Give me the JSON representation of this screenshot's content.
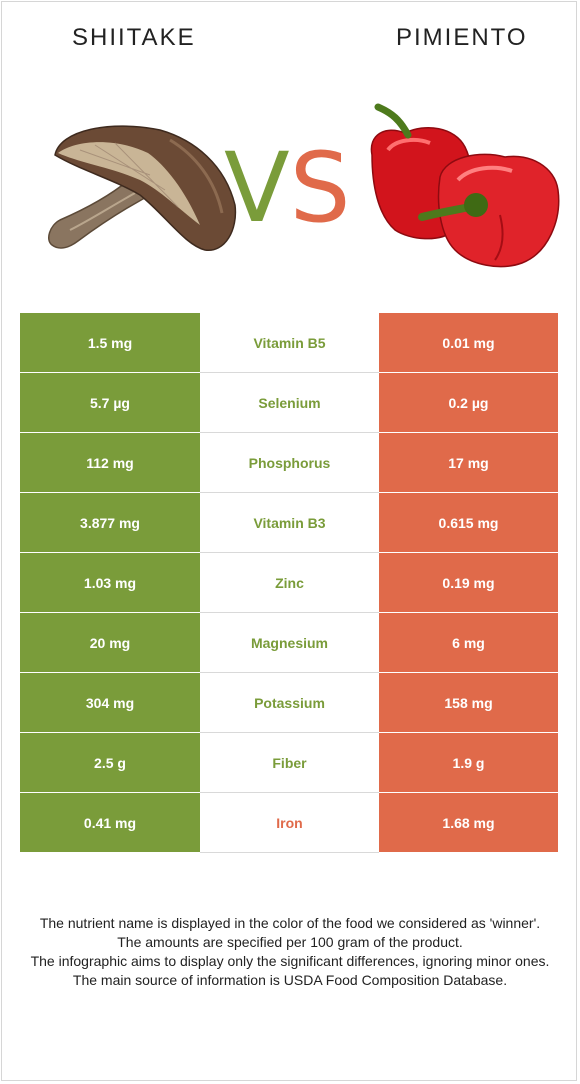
{
  "left_food": {
    "name": "SHIITAKE",
    "color": "#7a9c3a"
  },
  "right_food": {
    "name": "PIMIENTO",
    "color": "#e06a4a"
  },
  "vs": {
    "v": "V",
    "s": "S"
  },
  "rows": [
    {
      "left": "1.5 mg",
      "nutrient": "Vitamin B5",
      "right": "0.01 mg",
      "winner": "left"
    },
    {
      "left": "5.7 µg",
      "nutrient": "Selenium",
      "right": "0.2 µg",
      "winner": "left"
    },
    {
      "left": "112 mg",
      "nutrient": "Phosphorus",
      "right": "17 mg",
      "winner": "left"
    },
    {
      "left": "3.877 mg",
      "nutrient": "Vitamin B3",
      "right": "0.615 mg",
      "winner": "left"
    },
    {
      "left": "1.03 mg",
      "nutrient": "Zinc",
      "right": "0.19 mg",
      "winner": "left"
    },
    {
      "left": "20 mg",
      "nutrient": "Magnesium",
      "right": "6 mg",
      "winner": "left"
    },
    {
      "left": "304 mg",
      "nutrient": "Potassium",
      "right": "158 mg",
      "winner": "left"
    },
    {
      "left": "2.5 g",
      "nutrient": "Fiber",
      "right": "1.9 g",
      "winner": "left"
    },
    {
      "left": "0.41 mg",
      "nutrient": "Iron",
      "right": "1.68 mg",
      "winner": "right"
    }
  ],
  "footer": {
    "line1": "The nutrient name is displayed in the color of the food we considered as 'winner'.",
    "line2": "The amounts are specified per 100 gram of the product.",
    "line3": "The infographic aims to display only the significant differences, ignoring minor ones.",
    "line4": "The main source of information is USDA Food Composition Database."
  }
}
